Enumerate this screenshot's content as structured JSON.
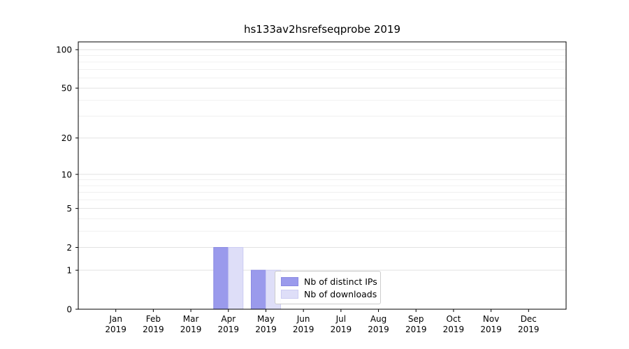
{
  "chart_data": {
    "type": "bar",
    "title": "hs133av2hsrefseqprobe 2019",
    "categories": [
      "Jan",
      "Feb",
      "Mar",
      "Apr",
      "May",
      "Jun",
      "Jul",
      "Aug",
      "Sep",
      "Oct",
      "Nov",
      "Dec"
    ],
    "x_tick_year": "2019",
    "series": [
      {
        "name": "Nb of distinct IPs",
        "color": "#9a9aec",
        "edge_color": "#8a8ae2",
        "values": [
          0,
          0,
          0,
          2,
          1,
          0,
          0,
          0,
          0,
          0,
          0,
          0
        ]
      },
      {
        "name": "Nb of downloads",
        "color": "#dedef8",
        "edge_color": "#ccccf2",
        "values": [
          0,
          0,
          0,
          2,
          1,
          0,
          0,
          0,
          0,
          0,
          0,
          0
        ]
      }
    ],
    "yscale": "log1p",
    "ylim": [
      0,
      115
    ],
    "y_major_ticks": [
      0,
      1,
      2,
      5,
      10,
      20,
      50,
      100
    ],
    "y_minor_ticks": [
      3,
      4,
      6,
      7,
      8,
      9,
      30,
      40,
      60,
      70,
      80,
      90
    ],
    "grid": true,
    "legend_position": "inside-bottom-center"
  }
}
